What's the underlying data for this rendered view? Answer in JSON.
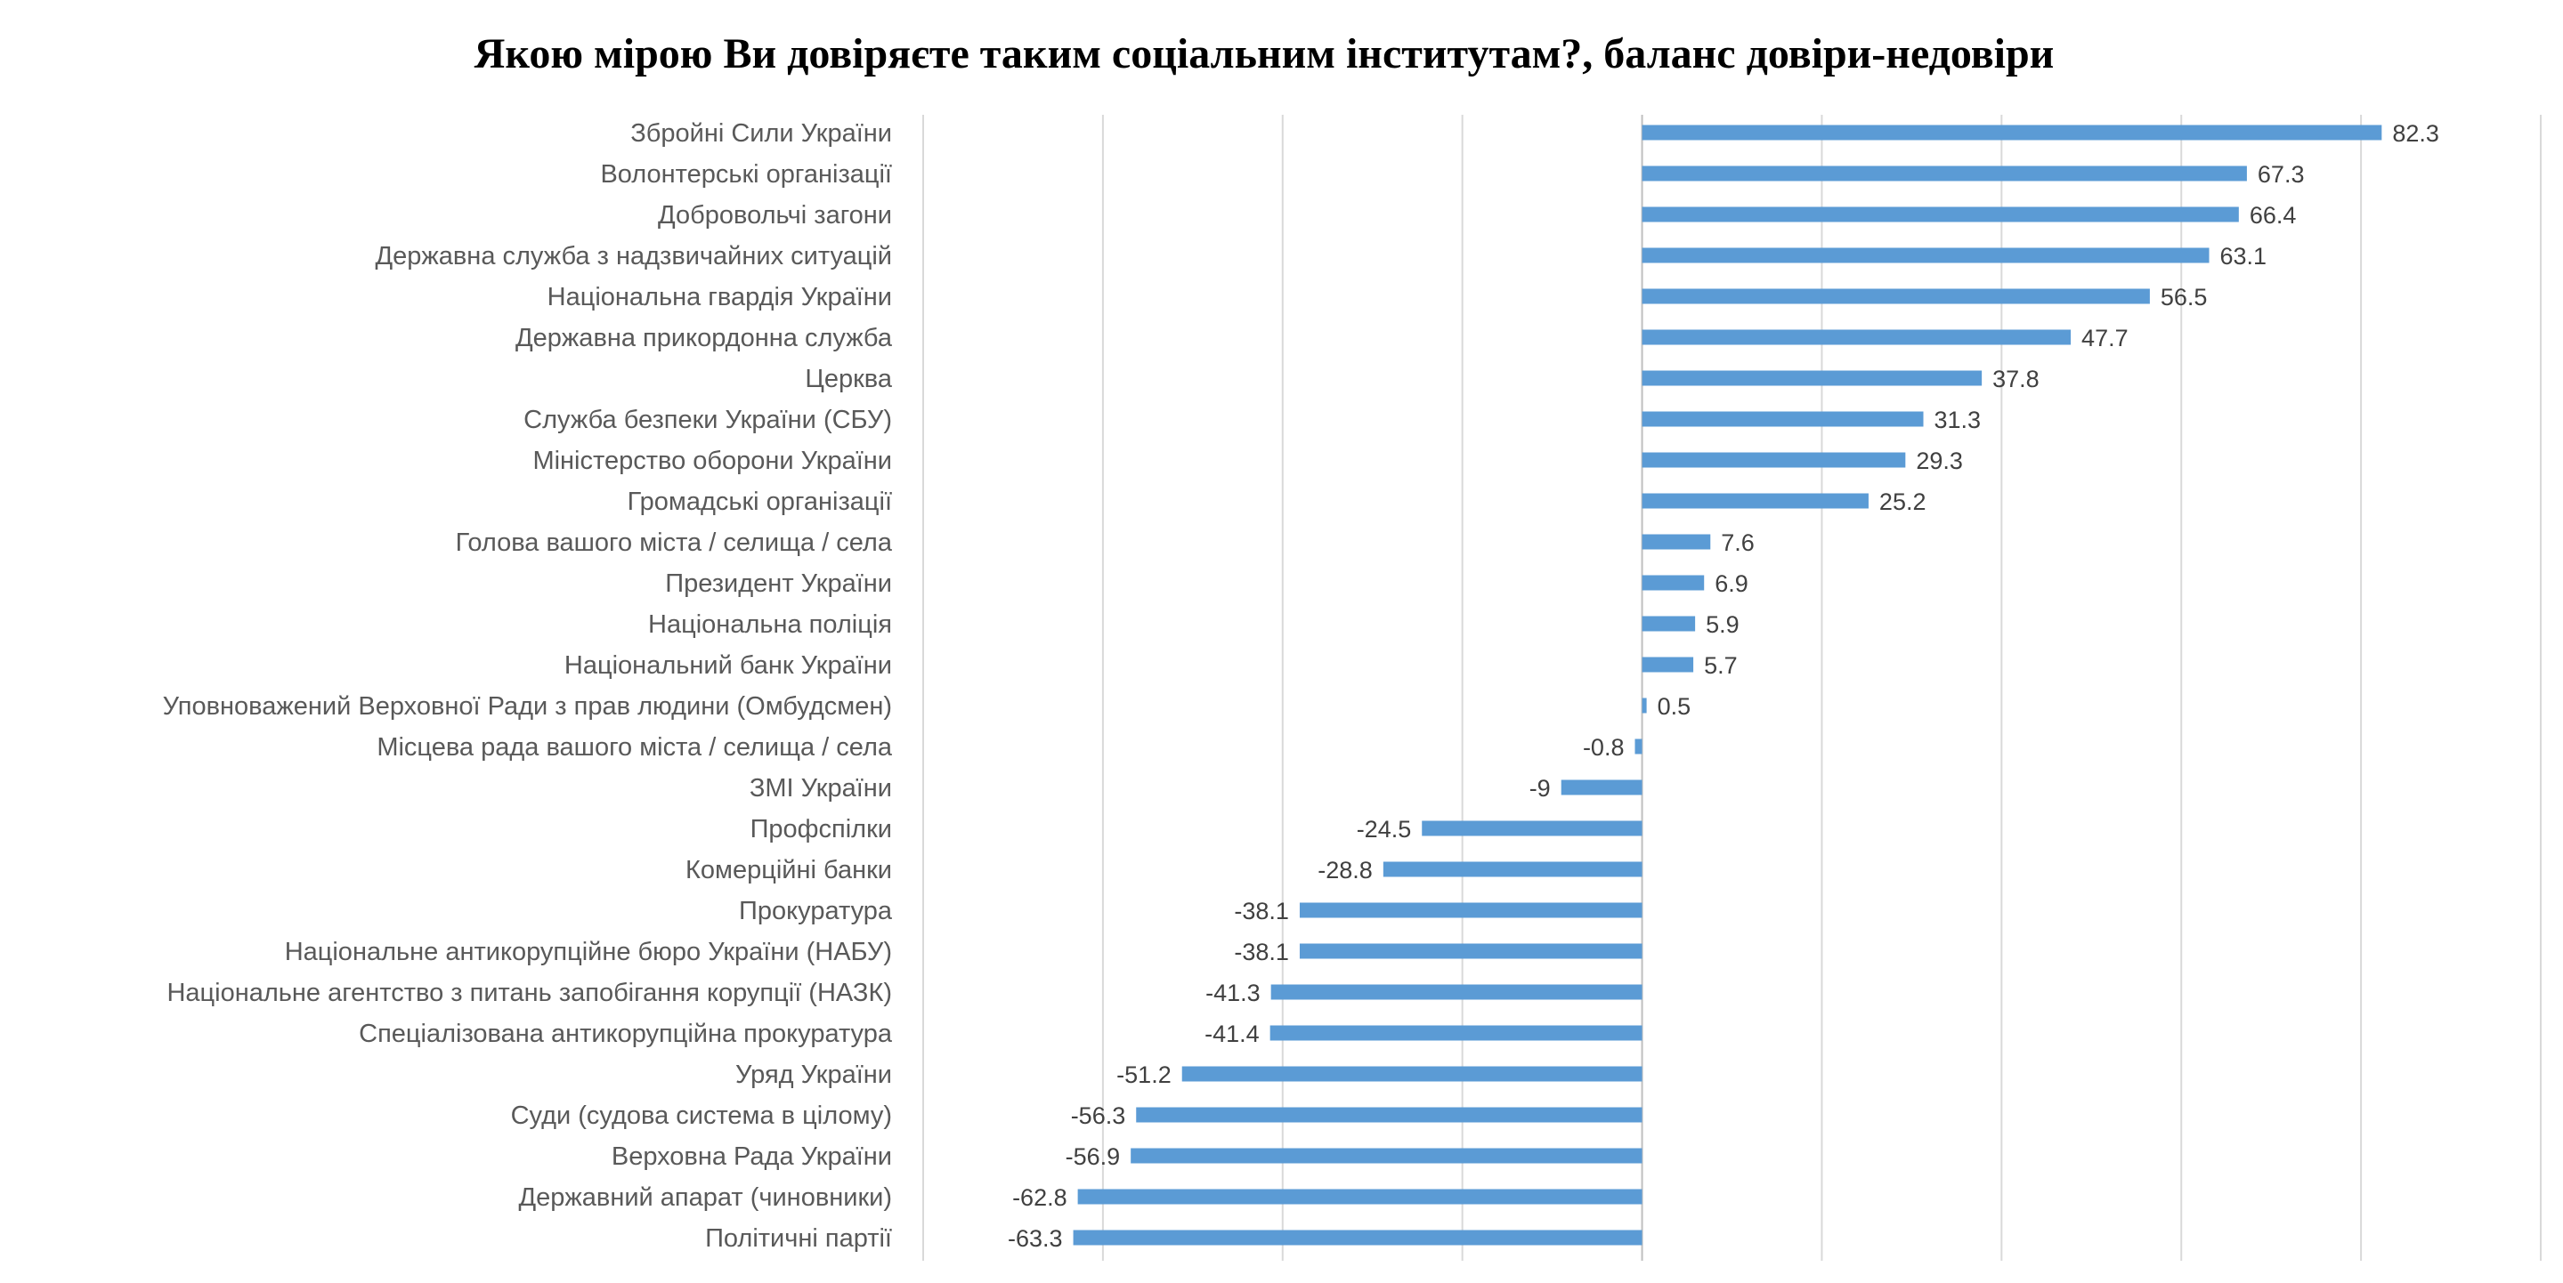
{
  "chart_data": {
    "type": "bar",
    "orientation": "horizontal",
    "title": "Якою мірою Ви довіряєте таким соціальним інститутам?, баланс довіри-недовіри",
    "xlabel": "",
    "ylabel": "",
    "xlim": [
      -80,
      100
    ],
    "grid": true,
    "grid_step": 20,
    "tick_labels_shown": false,
    "bar_color": "#5B9BD5",
    "data_labels": true,
    "categories": [
      "Збройні Сили України",
      "Волонтерські організації ",
      "Добровольчі загони",
      "Державна служба з надзвичайних ситуацій ",
      "Національна гвардія України",
      "Державна прикордонна служба",
      "Церква",
      "Служба безпеки України (СБУ)",
      "Міністерство оборони України",
      "Громадські організації",
      "Голова вашого міста / селища / села",
      "Президент України",
      "Національна поліція",
      "Національний банк України",
      "Уповноважений Верховної Ради  з прав людини (Омбудсмен)",
      "Місцева рада вашого міста / селища / села",
      "ЗМІ України",
      "Профспілки",
      "Комерційні банки",
      "Прокуратура",
      "Національне антикорупційне бюро України (НАБУ)",
      "Національне агентство з питань запобігання корупції (НАЗК)",
      "Спеціалізована антикорупційна прокуратура",
      "Уряд України",
      "Суди (судова система в цілому)",
      "Верховна Рада України",
      "Державний апарат (чиновники)",
      "Політичні партії"
    ],
    "values": [
      82.3,
      67.3,
      66.4,
      63.1,
      56.5,
      47.7,
      37.8,
      31.3,
      29.3,
      25.2,
      7.6,
      6.9,
      5.9,
      5.7,
      0.5,
      -0.8,
      -9,
      -24.5,
      -28.8,
      -38.1,
      -38.1,
      -41.3,
      -41.4,
      -51.2,
      -56.3,
      -56.9,
      -62.8,
      -63.3
    ]
  }
}
